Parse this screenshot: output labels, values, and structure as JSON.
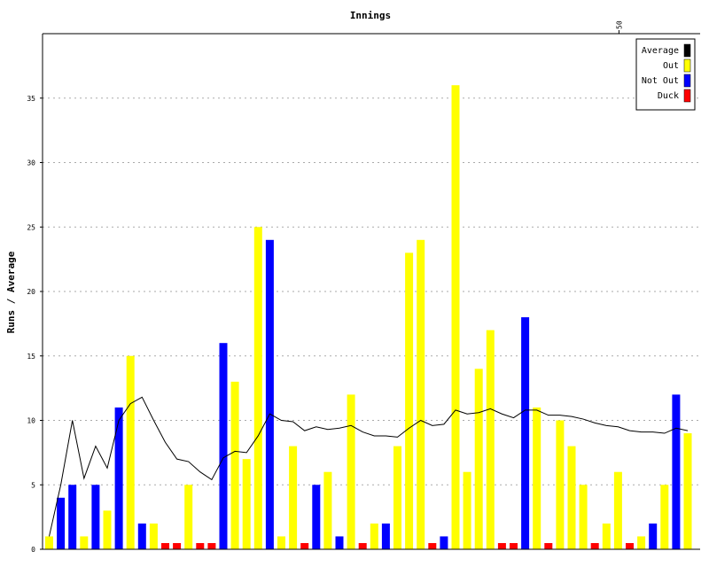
{
  "chart_data": {
    "type": "bar",
    "title": "Innings",
    "xlabel": "",
    "ylabel": "Runs / Average",
    "ylim": [
      0,
      40
    ],
    "yticks": [
      0,
      5,
      10,
      15,
      20,
      25,
      30,
      35
    ],
    "top_axis_ticks": [
      {
        "x": 50,
        "label": "50"
      }
    ],
    "grid": true,
    "legend_position": "top-right",
    "legend": [
      {
        "label": "Average",
        "color": "#000000"
      },
      {
        "label": "Out",
        "color": "#ffff00"
      },
      {
        "label": "Not Out",
        "color": "#0000ff"
      },
      {
        "label": "Duck",
        "color": "#ff0000"
      }
    ],
    "innings": [
      {
        "n": 1,
        "runs": 1,
        "kind": "out"
      },
      {
        "n": 2,
        "runs": 4,
        "kind": "notout"
      },
      {
        "n": 3,
        "runs": 5,
        "kind": "notout"
      },
      {
        "n": 4,
        "runs": 1,
        "kind": "out"
      },
      {
        "n": 5,
        "runs": 5,
        "kind": "notout"
      },
      {
        "n": 6,
        "runs": 3,
        "kind": "out"
      },
      {
        "n": 7,
        "runs": 11,
        "kind": "notout"
      },
      {
        "n": 8,
        "runs": 15,
        "kind": "out"
      },
      {
        "n": 9,
        "runs": 2,
        "kind": "notout"
      },
      {
        "n": 10,
        "runs": 2,
        "kind": "out"
      },
      {
        "n": 11,
        "runs": 0,
        "kind": "duck"
      },
      {
        "n": 12,
        "runs": 0,
        "kind": "duck"
      },
      {
        "n": 13,
        "runs": 5,
        "kind": "out"
      },
      {
        "n": 14,
        "runs": 0,
        "kind": "duck"
      },
      {
        "n": 15,
        "runs": 0,
        "kind": "duck"
      },
      {
        "n": 16,
        "runs": 16,
        "kind": "notout"
      },
      {
        "n": 17,
        "runs": 13,
        "kind": "out"
      },
      {
        "n": 18,
        "runs": 7,
        "kind": "out"
      },
      {
        "n": 19,
        "runs": 25,
        "kind": "out"
      },
      {
        "n": 20,
        "runs": 24,
        "kind": "notout"
      },
      {
        "n": 21,
        "runs": 1,
        "kind": "out"
      },
      {
        "n": 22,
        "runs": 8,
        "kind": "out"
      },
      {
        "n": 23,
        "runs": 0,
        "kind": "duck"
      },
      {
        "n": 24,
        "runs": 5,
        "kind": "notout"
      },
      {
        "n": 25,
        "runs": 6,
        "kind": "out"
      },
      {
        "n": 26,
        "runs": 1,
        "kind": "notout"
      },
      {
        "n": 27,
        "runs": 12,
        "kind": "out"
      },
      {
        "n": 28,
        "runs": 0,
        "kind": "duck"
      },
      {
        "n": 29,
        "runs": 2,
        "kind": "out"
      },
      {
        "n": 30,
        "runs": 2,
        "kind": "notout"
      },
      {
        "n": 31,
        "runs": 8,
        "kind": "out"
      },
      {
        "n": 32,
        "runs": 23,
        "kind": "out"
      },
      {
        "n": 33,
        "runs": 24,
        "kind": "out"
      },
      {
        "n": 34,
        "runs": 0,
        "kind": "duck"
      },
      {
        "n": 35,
        "runs": 1,
        "kind": "notout"
      },
      {
        "n": 36,
        "runs": 36,
        "kind": "out"
      },
      {
        "n": 37,
        "runs": 6,
        "kind": "out"
      },
      {
        "n": 38,
        "runs": 14,
        "kind": "out"
      },
      {
        "n": 39,
        "runs": 17,
        "kind": "out"
      },
      {
        "n": 40,
        "runs": 0,
        "kind": "duck"
      },
      {
        "n": 41,
        "runs": 0,
        "kind": "duck"
      },
      {
        "n": 42,
        "runs": 18,
        "kind": "notout"
      },
      {
        "n": 43,
        "runs": 11,
        "kind": "out"
      },
      {
        "n": 44,
        "runs": 0,
        "kind": "duck"
      },
      {
        "n": 45,
        "runs": 10,
        "kind": "out"
      },
      {
        "n": 46,
        "runs": 8,
        "kind": "out"
      },
      {
        "n": 47,
        "runs": 5,
        "kind": "out"
      },
      {
        "n": 48,
        "runs": 0,
        "kind": "duck"
      },
      {
        "n": 49,
        "runs": 2,
        "kind": "out"
      },
      {
        "n": 50,
        "runs": 6,
        "kind": "out"
      },
      {
        "n": 51,
        "runs": 0,
        "kind": "duck"
      },
      {
        "n": 52,
        "runs": 1,
        "kind": "out"
      },
      {
        "n": 53,
        "runs": 2,
        "kind": "notout"
      },
      {
        "n": 54,
        "runs": 5,
        "kind": "out"
      },
      {
        "n": 55,
        "runs": 12,
        "kind": "notout"
      },
      {
        "n": 56,
        "runs": 9,
        "kind": "out"
      }
    ],
    "average": [
      1,
      5,
      10,
      5.5,
      8,
      6.3,
      10,
      11.3,
      11.8,
      10,
      8.3,
      7,
      6.8,
      6,
      5.4,
      7.1,
      7.6,
      7.5,
      8.8,
      10.5,
      10,
      9.9,
      9.2,
      9.5,
      9.3,
      9.4,
      9.6,
      9.1,
      8.8,
      8.8,
      8.7,
      9.4,
      10,
      9.6,
      9.7,
      10.8,
      10.5,
      10.6,
      10.9,
      10.5,
      10.2,
      10.8,
      10.8,
      10.4,
      10.4,
      10.3,
      10.1,
      9.8,
      9.6,
      9.5,
      9.2,
      9.1,
      9.1,
      9,
      9.4,
      9.2
    ]
  }
}
